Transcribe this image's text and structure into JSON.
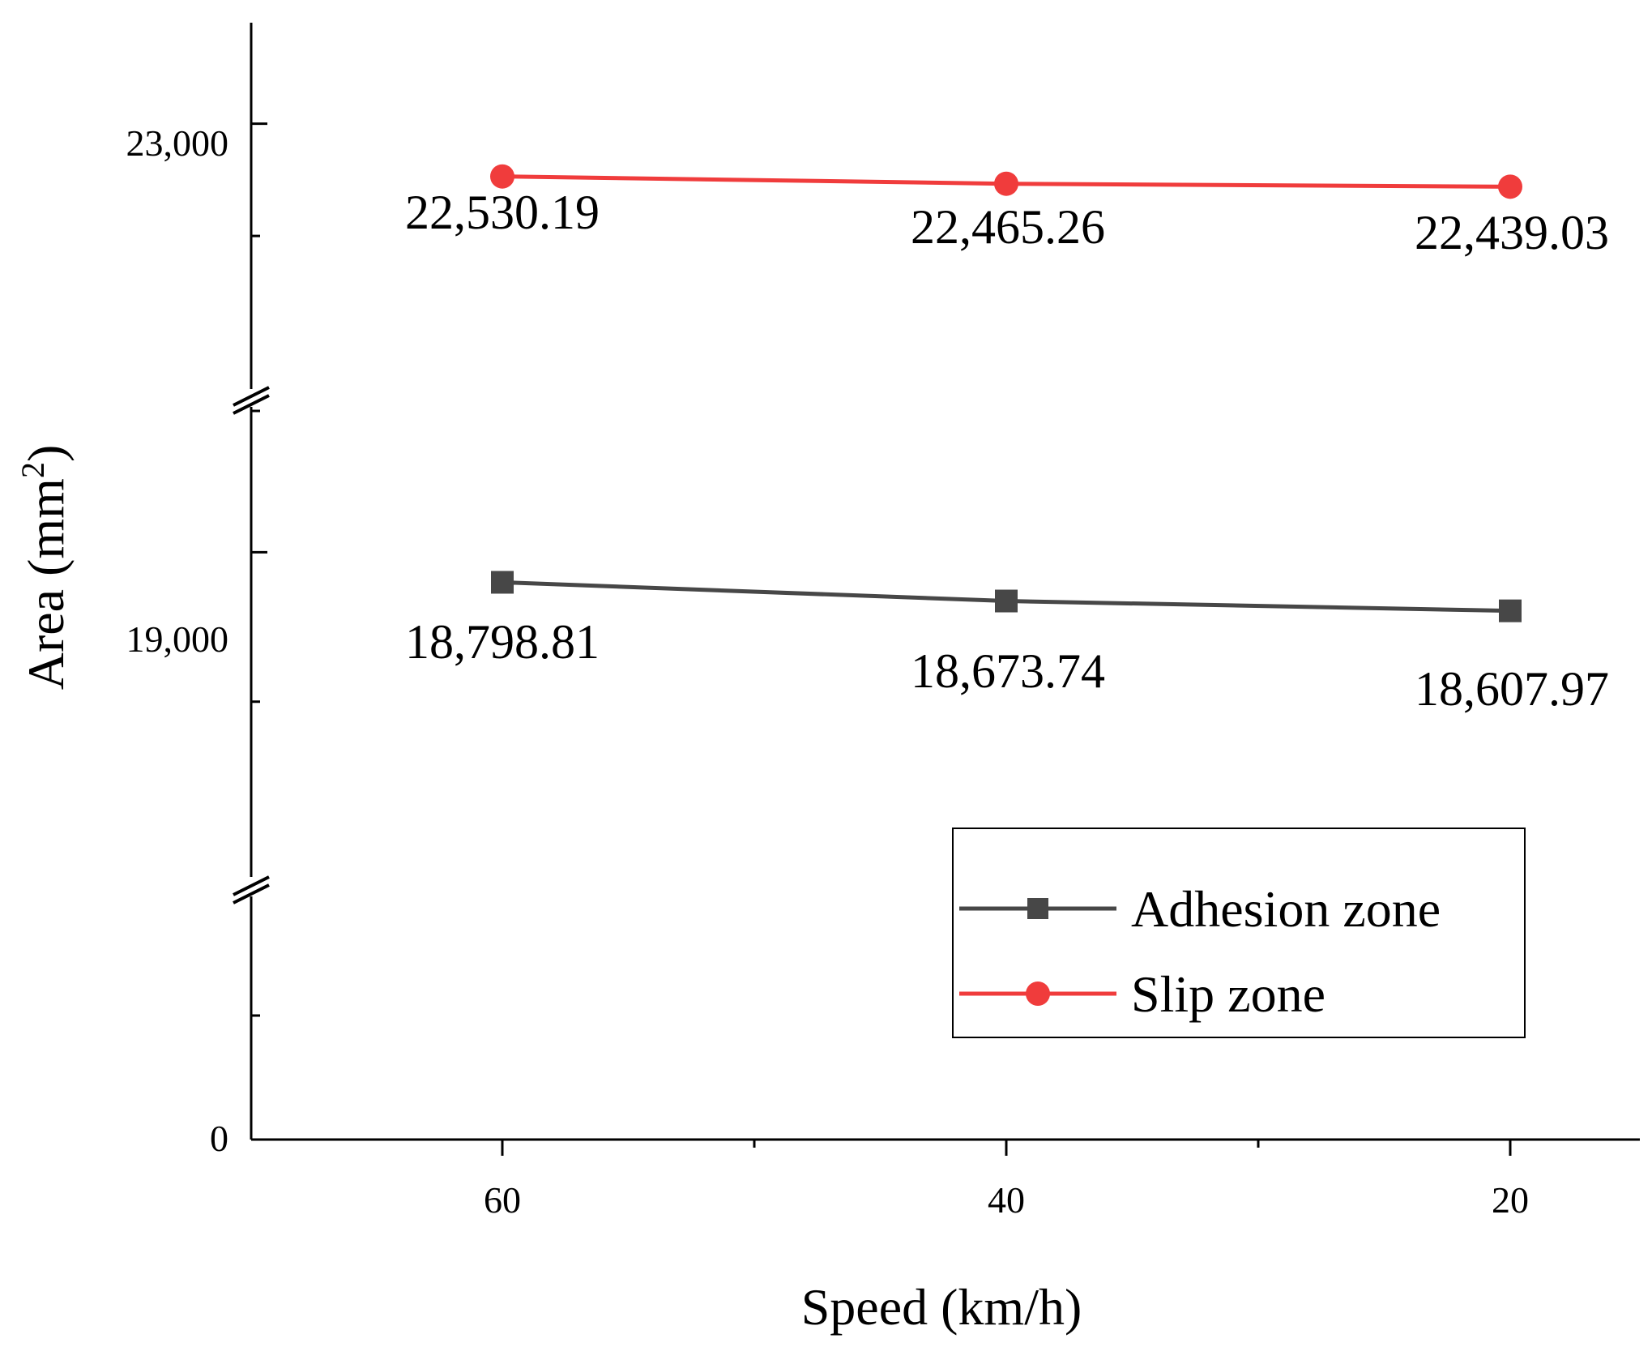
{
  "chart_data": {
    "type": "line",
    "title": "",
    "xlabel": "Speed (km/h)",
    "ylabel": "Area (mm",
    "ylabel_superscript": "2",
    "ylabel_close": ")",
    "categories": [
      "60",
      "40",
      "20"
    ],
    "y_ticks": [
      "23,000",
      "19,000",
      "0"
    ],
    "y_axis_broken": true,
    "y_segments": [
      {
        "name": "upper",
        "range": [
          20600,
          23900
        ]
      },
      {
        "name": "middle",
        "range": [
          16800,
          20000
        ]
      },
      {
        "name": "lower",
        "range": [
          0,
          4000
        ]
      }
    ],
    "series": [
      {
        "name": "Adhesion zone",
        "marker": "square",
        "color": "#474747",
        "values": [
          18798.81,
          18673.74,
          18607.97
        ],
        "labels": [
          "18,798.81",
          "18,673.74",
          "18,607.97"
        ]
      },
      {
        "name": "Slip zone",
        "marker": "circle",
        "color": "#f03c3c",
        "values": [
          22530.19,
          22465.26,
          22439.03
        ],
        "labels": [
          "22,530.19",
          "22,465.26",
          "22,439.03"
        ]
      }
    ],
    "legend_position": "bottom-right"
  }
}
